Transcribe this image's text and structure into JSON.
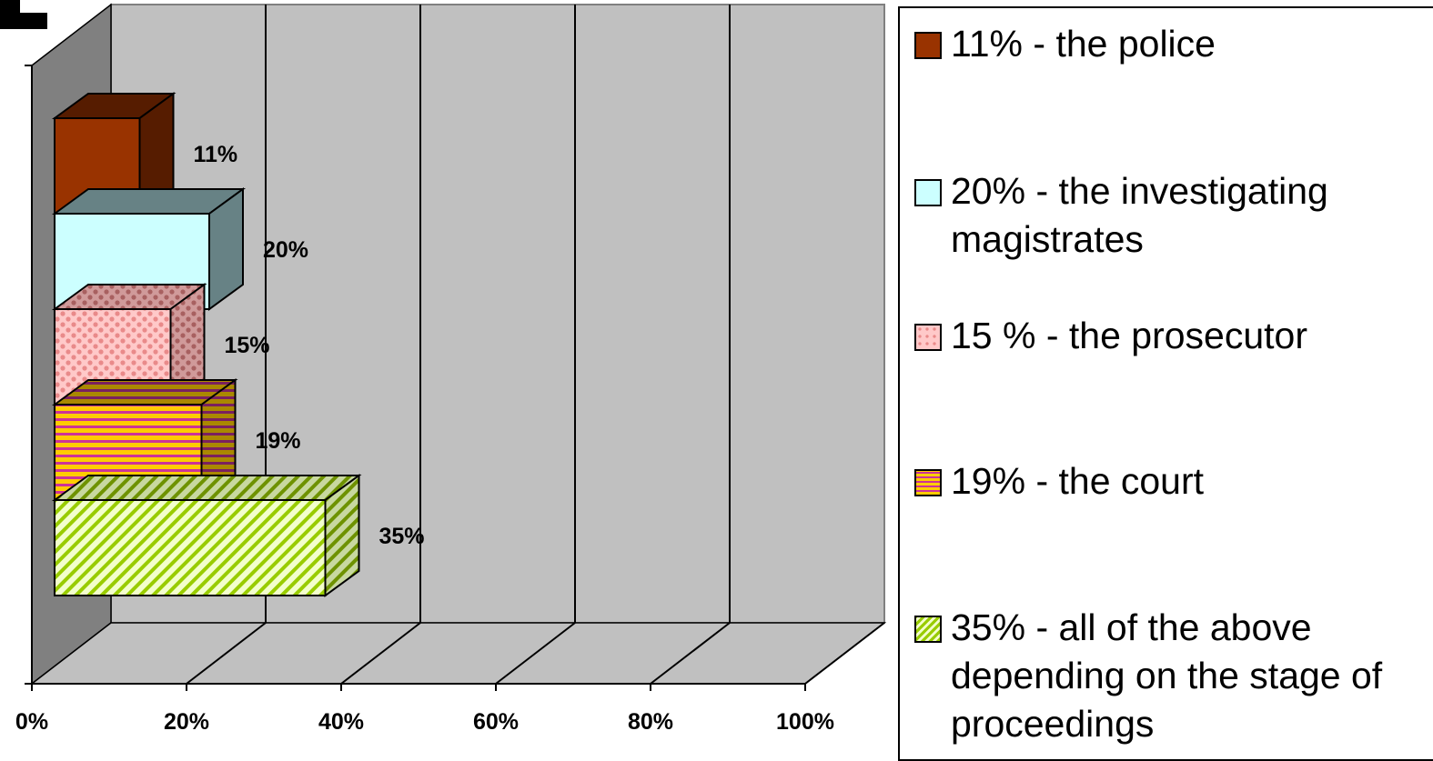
{
  "chart_data": {
    "type": "bar",
    "orientation": "horizontal",
    "three_d": true,
    "series": [
      {
        "name": "11% - the police",
        "value": 11,
        "data_label": "11%",
        "color": "#993300",
        "side": "#561C00",
        "pattern": "solid"
      },
      {
        "name": "20% - the investigating magistrates",
        "value": 20,
        "data_label": "20%",
        "color": "#CCFFFF",
        "side": "#678285",
        "pattern": "solid"
      },
      {
        "name": "15 % - the prosecutor",
        "value": 15,
        "data_label": "15%",
        "color": "#FF9999",
        "side": "#B36B6B",
        "pattern": "dots"
      },
      {
        "name": "19% - the court",
        "value": 19,
        "data_label": "19%",
        "color": "#FFCC00",
        "side": "#806600",
        "pattern": "horizontal-stripes"
      },
      {
        "name": "35% - all of the above depending on the stage of proceedings",
        "value": 35,
        "data_label": "35%",
        "color": "#99CC00",
        "side": "#5F7F00",
        "pattern": "diagonal-stripes"
      }
    ],
    "x_ticks": [
      "0%",
      "20%",
      "40%",
      "60%",
      "80%",
      "100%"
    ],
    "xlim": [
      0,
      100
    ],
    "grid": true,
    "legend_position": "right",
    "wall_color": "#C0C0C0",
    "side_wall_color": "#808080"
  }
}
